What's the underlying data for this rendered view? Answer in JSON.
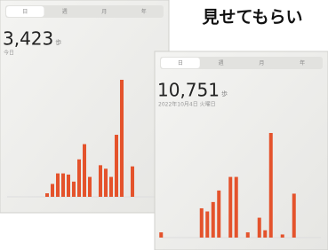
{
  "caption": "見せてもらい",
  "chart_data": [
    {
      "type": "bar",
      "tabs": [
        "日",
        "週",
        "月",
        "年"
      ],
      "total": "3,423",
      "unit": "歩",
      "subtitle": "今日",
      "categories": [
        null,
        null,
        null,
        null,
        null,
        null,
        null,
        null,
        null,
        null,
        null,
        null,
        null,
        null,
        null,
        null,
        null,
        null,
        null,
        null,
        null,
        null,
        null,
        null
      ],
      "values": [
        null,
        null,
        null,
        null,
        null,
        3,
        11,
        20,
        20,
        19,
        13,
        32,
        45,
        17,
        null,
        27,
        24,
        17,
        53,
        100,
        null,
        26,
        null,
        null
      ],
      "color": "#e4532c",
      "ylim": [
        0,
        100
      ]
    },
    {
      "type": "bar",
      "tabs": [
        "日",
        "週",
        "月",
        "年"
      ],
      "total": "10,751",
      "unit": "歩",
      "subtitle": "2022年10月4日 火曜日",
      "categories": [
        null,
        null,
        null,
        null,
        null,
        null,
        null,
        null,
        null,
        null,
        null,
        null,
        null,
        null,
        null,
        null,
        null,
        null,
        null,
        null,
        null,
        null,
        null,
        null
      ],
      "values": [
        5,
        null,
        null,
        null,
        null,
        null,
        null,
        28,
        25,
        34,
        45,
        null,
        58,
        58,
        null,
        5,
        null,
        19,
        7,
        100,
        null,
        3,
        null,
        42
      ],
      "color": "#e4532c",
      "ylim": [
        0,
        100
      ]
    }
  ]
}
